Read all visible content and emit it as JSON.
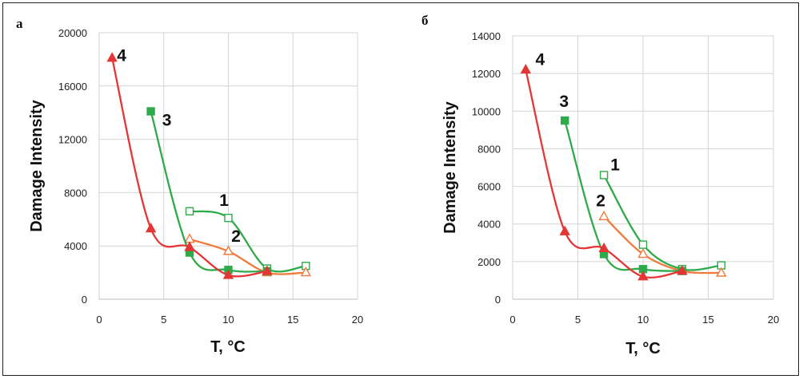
{
  "panels": [
    {
      "letter": "а",
      "chart_data": {
        "type": "line",
        "xlabel": "T, °C",
        "ylabel": "Damage Intensity",
        "xlim": [
          0,
          20
        ],
        "ylim": [
          0,
          20000
        ],
        "xticks": [
          0,
          5,
          10,
          15,
          20
        ],
        "yticks": [
          0,
          4000,
          8000,
          12000,
          16000,
          20000
        ],
        "grid": true,
        "series": [
          {
            "name": "1",
            "color": "#2eaa4a",
            "marker": "square-open",
            "x": [
              7,
              10,
              13,
              16
            ],
            "y": [
              6600,
              6100,
              2300,
              2500
            ]
          },
          {
            "name": "2",
            "color": "#f07b3a",
            "marker": "triangle-open",
            "x": [
              7,
              10,
              13,
              16
            ],
            "y": [
              4500,
              3600,
              2000,
              2000
            ]
          },
          {
            "name": "3",
            "color": "#2eaa4a",
            "marker": "square-filled",
            "x": [
              4,
              7,
              10,
              13
            ],
            "y": [
              14100,
              3500,
              2200,
              2100
            ]
          },
          {
            "name": "4",
            "color": "#e53535",
            "marker": "triangle-filled",
            "x": [
              1,
              4,
              7,
              10,
              13
            ],
            "y": [
              18100,
              5300,
              3900,
              1800,
              2100
            ]
          }
        ]
      }
    },
    {
      "letter": "б",
      "chart_data": {
        "type": "line",
        "xlabel": "T, °C",
        "ylabel": "Damage Intensity",
        "xlim": [
          0,
          20
        ],
        "ylim": [
          0,
          14000
        ],
        "xticks": [
          0,
          5,
          10,
          15,
          20
        ],
        "yticks": [
          0,
          2000,
          4000,
          6000,
          8000,
          10000,
          12000,
          14000
        ],
        "grid": true,
        "series": [
          {
            "name": "1",
            "color": "#2eaa4a",
            "marker": "square-open",
            "x": [
              7,
              10,
              13,
              16
            ],
            "y": [
              6600,
              2900,
              1600,
              1800
            ]
          },
          {
            "name": "2",
            "color": "#f07b3a",
            "marker": "triangle-open",
            "x": [
              7,
              10,
              13,
              16
            ],
            "y": [
              4400,
              2400,
              1500,
              1400
            ]
          },
          {
            "name": "3",
            "color": "#2eaa4a",
            "marker": "square-filled",
            "x": [
              4,
              7,
              10,
              13
            ],
            "y": [
              9500,
              2400,
              1600,
              1500
            ]
          },
          {
            "name": "4",
            "color": "#e53535",
            "marker": "triangle-filled",
            "x": [
              1,
              4,
              7,
              10,
              13
            ],
            "y": [
              12200,
              3600,
              2700,
              1200,
              1500
            ]
          }
        ]
      }
    }
  ]
}
